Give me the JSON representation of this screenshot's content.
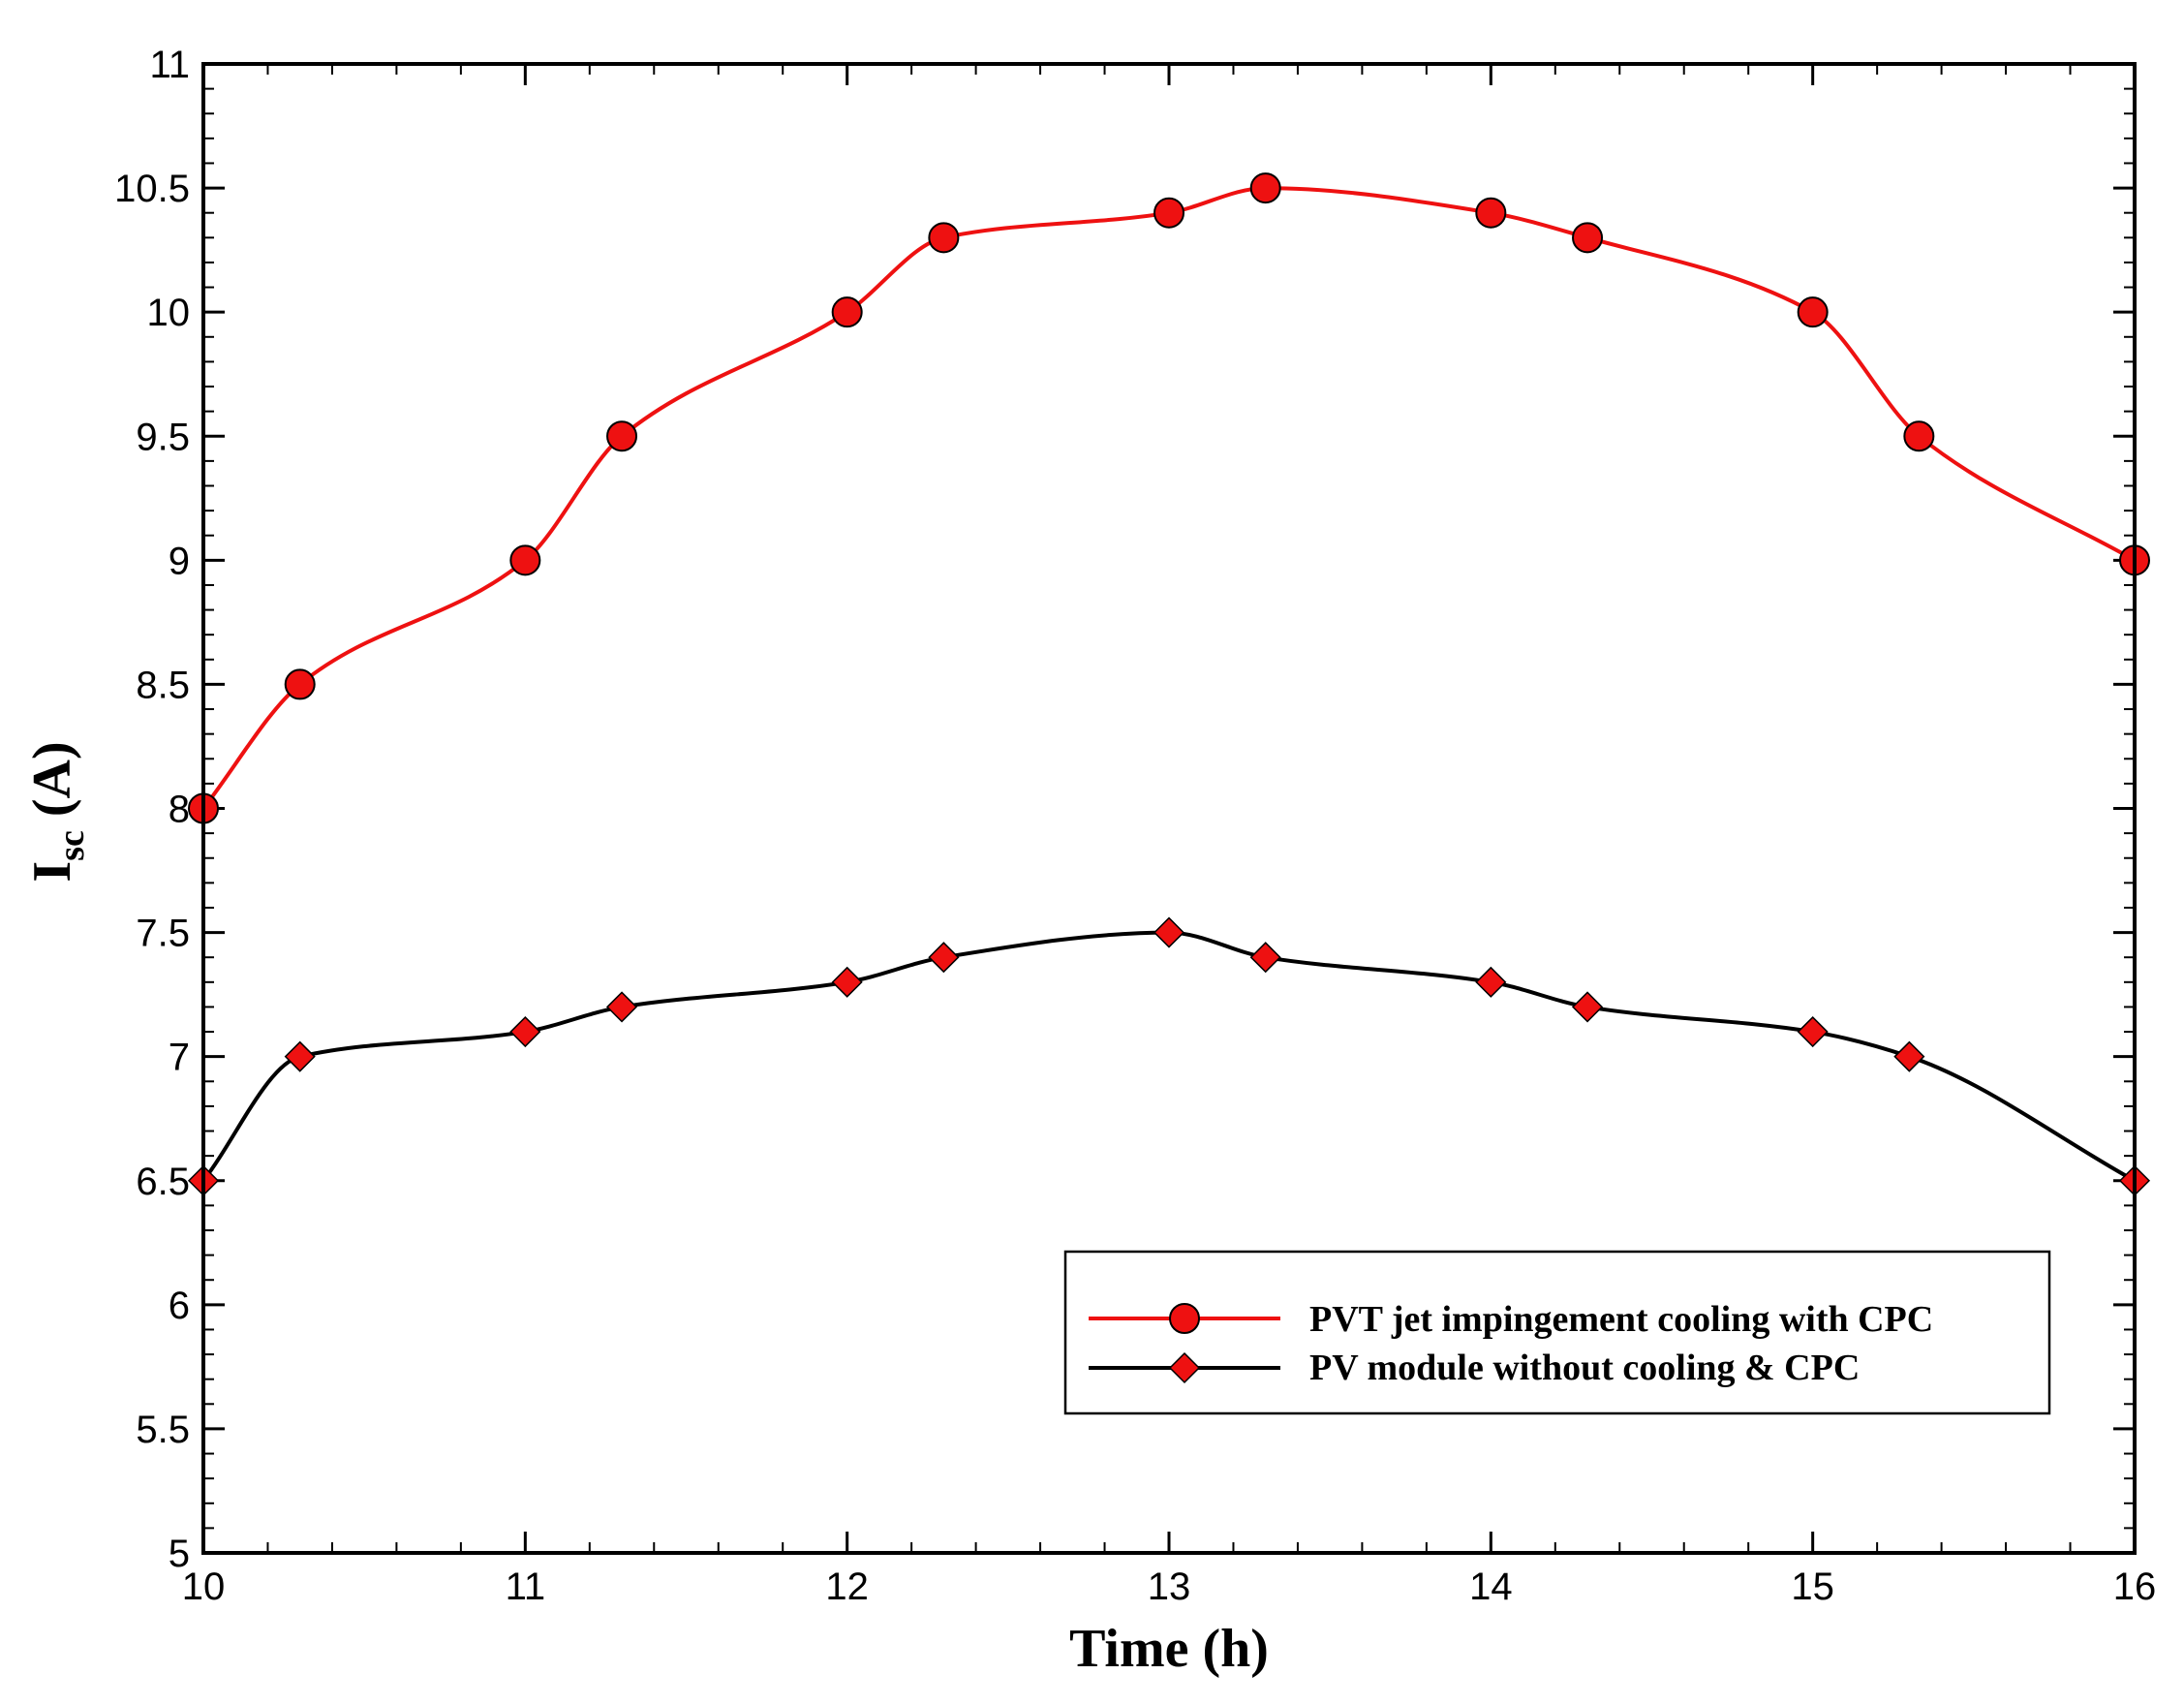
{
  "chart_data": {
    "type": "line",
    "title": "",
    "xlabel": "Time (h)",
    "ylabel": {
      "main": "I",
      "subscript": "sc",
      "suffix": " (A)"
    },
    "xlim": [
      10,
      16
    ],
    "ylim": [
      5,
      11
    ],
    "xticks": [
      10,
      11,
      12,
      13,
      14,
      15,
      16
    ],
    "yticks": [
      5,
      5.5,
      6,
      6.5,
      7,
      7.5,
      8,
      8.5,
      9,
      9.5,
      10,
      10.5,
      11
    ],
    "x_minor_step": 0.2,
    "y_minor_step": 0.1,
    "grid": false,
    "legend_position": "lower-right",
    "series": [
      {
        "name": "PVT jet impingement cooling with CPC",
        "color": "#ee1111",
        "marker": "circle",
        "marker_color": "#ee1111",
        "x": [
          10,
          10.3,
          11,
          11.3,
          12,
          12.3,
          13,
          13.3,
          14,
          14.3,
          15,
          15.33,
          16
        ],
        "y": [
          8.0,
          8.5,
          9.0,
          9.5,
          10.0,
          10.3,
          10.4,
          10.5,
          10.4,
          10.3,
          10.0,
          9.5,
          9.0
        ]
      },
      {
        "name": "PV module without cooling & CPC",
        "color": "#000000",
        "marker": "diamond",
        "marker_color": "#ee1111",
        "x": [
          10,
          10.3,
          11,
          11.3,
          12,
          12.3,
          13,
          13.3,
          14,
          14.3,
          15,
          15.3,
          16
        ],
        "y": [
          6.5,
          7.0,
          7.1,
          7.2,
          7.3,
          7.4,
          7.5,
          7.4,
          7.3,
          7.2,
          7.1,
          7.0,
          6.5
        ]
      }
    ]
  }
}
